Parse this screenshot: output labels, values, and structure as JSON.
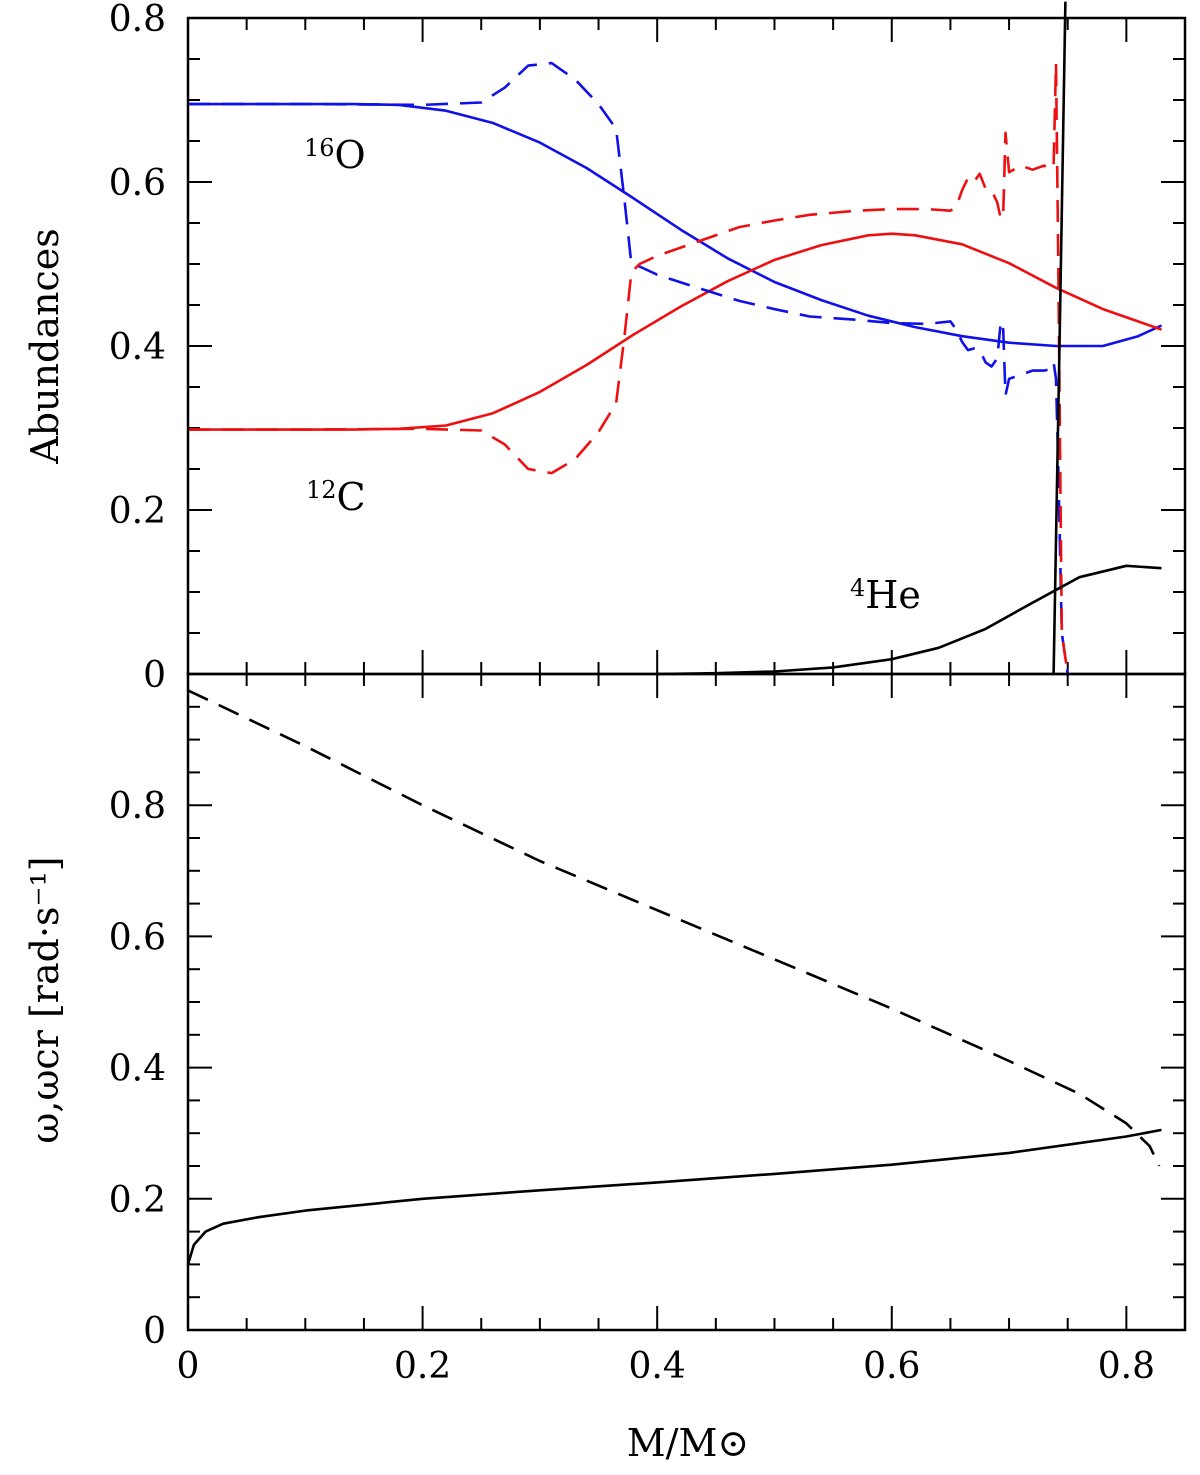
{
  "colors": {
    "oxygen": "#1010e8",
    "carbon": "#ee1010",
    "helium": "#000000",
    "axes": "#000000"
  },
  "chart_data": [
    {
      "type": "line",
      "panel": "top",
      "ylabel": "Abundances",
      "xlim": [
        0,
        0.85
      ],
      "ylim": [
        0,
        0.8
      ],
      "xticks": [
        0,
        0.2,
        0.4,
        0.6,
        0.8
      ],
      "yticks": [
        0,
        0.2,
        0.4,
        0.6,
        0.8
      ],
      "grid": false,
      "tick_labels": {
        "x": [
          "0",
          "0.2",
          "0.4",
          "0.6",
          "0.8"
        ],
        "y": [
          "0",
          "0.2",
          "0.4",
          "0.6",
          "0.8"
        ]
      },
      "annotations": [
        {
          "sup": "16",
          "base": "O",
          "color_key": "oxygen"
        },
        {
          "sup": "12",
          "base": "C",
          "color_key": "carbon"
        },
        {
          "sup": "4",
          "base": "He",
          "color_key": "helium"
        }
      ],
      "series": [
        {
          "color_key": "oxygen",
          "style": "solid",
          "x": [
            0,
            0.05,
            0.1,
            0.14,
            0.18,
            0.22,
            0.26,
            0.3,
            0.34,
            0.38,
            0.42,
            0.46,
            0.5,
            0.54,
            0.58,
            0.62,
            0.66,
            0.7,
            0.74,
            0.78,
            0.81,
            0.83
          ],
          "y": [
            0.695,
            0.695,
            0.695,
            0.695,
            0.694,
            0.687,
            0.672,
            0.648,
            0.617,
            0.58,
            0.542,
            0.507,
            0.478,
            0.456,
            0.437,
            0.423,
            0.412,
            0.404,
            0.4,
            0.4,
            0.412,
            0.425
          ]
        },
        {
          "color_key": "carbon",
          "style": "solid",
          "x": [
            0,
            0.05,
            0.1,
            0.14,
            0.18,
            0.22,
            0.26,
            0.3,
            0.34,
            0.38,
            0.42,
            0.46,
            0.5,
            0.54,
            0.58,
            0.6,
            0.62,
            0.66,
            0.7,
            0.74,
            0.78,
            0.81,
            0.83
          ],
          "y": [
            0.298,
            0.298,
            0.298,
            0.298,
            0.299,
            0.303,
            0.318,
            0.344,
            0.377,
            0.414,
            0.448,
            0.479,
            0.505,
            0.523,
            0.535,
            0.537,
            0.535,
            0.524,
            0.501,
            0.471,
            0.445,
            0.43,
            0.42
          ]
        },
        {
          "color_key": "oxygen",
          "style": "dashed",
          "x": [
            0,
            0.1,
            0.2,
            0.25,
            0.27,
            0.29,
            0.31,
            0.33,
            0.35,
            0.365,
            0.372,
            0.378,
            0.385,
            0.4,
            0.43,
            0.47,
            0.5,
            0.53,
            0.57,
            0.6,
            0.63,
            0.65,
            0.655,
            0.66,
            0.665,
            0.67,
            0.675,
            0.68,
            0.685,
            0.69,
            0.693,
            0.695,
            0.697,
            0.7,
            0.71,
            0.72,
            0.73,
            0.735,
            0.738,
            0.74,
            0.742,
            0.745,
            0.75
          ],
          "y": [
            0.695,
            0.695,
            0.694,
            0.697,
            0.715,
            0.742,
            0.745,
            0.725,
            0.695,
            0.665,
            0.58,
            0.5,
            0.497,
            0.487,
            0.473,
            0.455,
            0.445,
            0.436,
            0.432,
            0.428,
            0.427,
            0.43,
            0.42,
            0.405,
            0.395,
            0.397,
            0.395,
            0.38,
            0.375,
            0.385,
            0.43,
            0.42,
            0.34,
            0.36,
            0.365,
            0.37,
            0.37,
            0.372,
            0.38,
            0.36,
            0.25,
            0.05,
            0
          ]
        },
        {
          "color_key": "carbon",
          "style": "dashed",
          "x": [
            0,
            0.1,
            0.2,
            0.25,
            0.27,
            0.29,
            0.31,
            0.33,
            0.35,
            0.365,
            0.372,
            0.378,
            0.385,
            0.4,
            0.43,
            0.47,
            0.5,
            0.53,
            0.57,
            0.6,
            0.63,
            0.65,
            0.655,
            0.66,
            0.665,
            0.67,
            0.675,
            0.68,
            0.685,
            0.69,
            0.693,
            0.695,
            0.697,
            0.7,
            0.71,
            0.72,
            0.73,
            0.735,
            0.738,
            0.74,
            0.742,
            0.745,
            0.75
          ],
          "y": [
            0.298,
            0.298,
            0.299,
            0.297,
            0.28,
            0.25,
            0.245,
            0.262,
            0.295,
            0.33,
            0.41,
            0.49,
            0.5,
            0.51,
            0.525,
            0.545,
            0.553,
            0.56,
            0.565,
            0.567,
            0.567,
            0.565,
            0.57,
            0.59,
            0.605,
            0.6,
            0.61,
            0.592,
            0.59,
            0.575,
            0.555,
            0.56,
            0.66,
            0.612,
            0.62,
            0.615,
            0.62,
            0.615,
            0.62,
            0.745,
            0.5,
            0.05,
            0
          ]
        },
        {
          "color_key": "helium",
          "style": "solid",
          "x": [
            0.4,
            0.45,
            0.5,
            0.55,
            0.6,
            0.64,
            0.68,
            0.72,
            0.76,
            0.8,
            0.83
          ],
          "y": [
            0.0,
            0.001,
            0.003,
            0.008,
            0.018,
            0.032,
            0.055,
            0.087,
            0.118,
            0.132,
            0.129
          ]
        },
        {
          "color_key": "helium",
          "style": "solid",
          "x": [
            0.738,
            0.743,
            0.748
          ],
          "y": [
            0.0,
            0.4,
            0.82
          ]
        }
      ]
    },
    {
      "type": "line",
      "panel": "bottom",
      "ylabel": "ω,ωcr [rad·s⁻¹]",
      "xlabel": "M/M⊙",
      "xlim": [
        0,
        0.85
      ],
      "ylim": [
        0,
        1.0
      ],
      "xticks": [
        0,
        0.2,
        0.4,
        0.6,
        0.8
      ],
      "yticks": [
        0,
        0.2,
        0.4,
        0.6,
        0.8
      ],
      "grid": false,
      "tick_labels": {
        "x": [
          "0",
          "0.2",
          "0.4",
          "0.6",
          "0.8"
        ],
        "y": [
          "0",
          "0.2",
          "0.4",
          "0.6",
          "0.8"
        ]
      },
      "series": [
        {
          "color_key": "helium",
          "style": "solid",
          "x": [
            0,
            0.005,
            0.015,
            0.03,
            0.06,
            0.1,
            0.2,
            0.3,
            0.4,
            0.5,
            0.6,
            0.7,
            0.8,
            0.83
          ],
          "y": [
            0.1,
            0.13,
            0.15,
            0.162,
            0.172,
            0.182,
            0.2,
            0.213,
            0.225,
            0.238,
            0.252,
            0.27,
            0.295,
            0.305
          ]
        },
        {
          "color_key": "helium",
          "style": "dashed",
          "x": [
            0,
            0.1,
            0.2,
            0.3,
            0.4,
            0.5,
            0.6,
            0.7,
            0.76,
            0.8,
            0.82,
            0.828
          ],
          "y": [
            0.975,
            0.89,
            0.8,
            0.715,
            0.64,
            0.565,
            0.49,
            0.41,
            0.36,
            0.315,
            0.28,
            0.25
          ]
        }
      ]
    }
  ]
}
